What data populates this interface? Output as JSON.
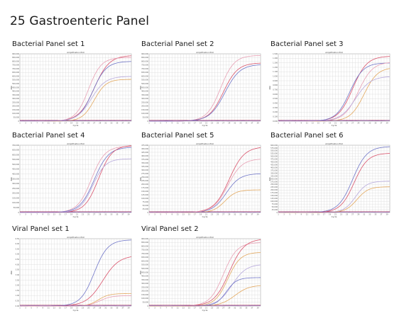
{
  "page": {
    "title": "25 Gastroenteric Panel"
  },
  "colors": {
    "red": "#d9536b",
    "rose": "#e8a0b4",
    "blue": "#7076c8",
    "lavender": "#b7a9dc",
    "orange": "#e3a85e",
    "purple": "#8a5aa8",
    "grid": "#d9d9d9",
    "baseline": "#b04a66"
  },
  "chart_data": [
    {
      "name": "Bacterial Panel set 1",
      "type": "line",
      "title": "Amplification Plot",
      "xlabel": "Cycle",
      "ylabel": "ΔRn",
      "xlim": [
        1,
        40
      ],
      "ylim": [
        0,
        900000
      ],
      "yticks": [
        0,
        50000,
        100000,
        150000,
        200000,
        250000,
        300000,
        350000,
        400000,
        450000,
        500000,
        550000,
        600000,
        650000,
        700000,
        750000,
        800000,
        850000,
        900000
      ],
      "grid": true,
      "series": [
        {
          "color": "#d9536b",
          "midpoint": 27,
          "slope": 0.38,
          "plateau": 880000
        },
        {
          "color": "#e8a0b4",
          "midpoint": 25,
          "slope": 0.45,
          "plateau": 850000
        },
        {
          "color": "#7076c8",
          "midpoint": 26.5,
          "slope": 0.42,
          "plateau": 800000
        },
        {
          "color": "#e3a85e",
          "midpoint": 27,
          "slope": 0.48,
          "plateau": 560000
        },
        {
          "color": "#b7a9dc",
          "midpoint": 26,
          "slope": 0.4,
          "plateau": 600000
        },
        {
          "color": "#8a5aa8",
          "midpoint": 0,
          "slope": 0,
          "plateau": 5000
        }
      ]
    },
    {
      "name": "Bacterial Panel set 2",
      "type": "line",
      "title": "Amplification Plot",
      "xlabel": "Cycle",
      "ylabel": "ΔRn",
      "xlim": [
        1,
        40
      ],
      "ylim": [
        0,
        900000
      ],
      "yticks": [
        0,
        50000,
        100000,
        150000,
        200000,
        250000,
        300000,
        350000,
        400000,
        450000,
        500000,
        550000,
        600000,
        650000,
        700000,
        750000,
        800000,
        850000,
        900000
      ],
      "grid": true,
      "series": [
        {
          "color": "#e8a0b4",
          "midpoint": 26,
          "slope": 0.42,
          "plateau": 880000
        },
        {
          "color": "#d9536b",
          "midpoint": 27,
          "slope": 0.4,
          "plateau": 780000
        },
        {
          "color": "#7076c8",
          "midpoint": 27.5,
          "slope": 0.38,
          "plateau": 760000
        },
        {
          "color": "#8a5aa8",
          "midpoint": 0,
          "slope": 0,
          "plateau": 4000
        }
      ]
    },
    {
      "name": "Bacterial Panel set 3",
      "type": "line",
      "title": "Amplification Plot",
      "xlabel": "Cycle",
      "ylabel": "ΔRn",
      "xlim": [
        1,
        40
      ],
      "ylim": [
        0,
        1.5
      ],
      "yticks": [
        0,
        0.1,
        0.2,
        0.3,
        0.4,
        0.5,
        0.6,
        0.7,
        0.8,
        0.9,
        1.0,
        1.1,
        1.2,
        1.3,
        1.4,
        1.5
      ],
      "grid": true,
      "series": [
        {
          "color": "#d9536b",
          "midpoint": 27,
          "slope": 0.4,
          "plateau": 1.45
        },
        {
          "color": "#7076c8",
          "midpoint": 26,
          "slope": 0.42,
          "plateau": 1.3
        },
        {
          "color": "#e8a0b4",
          "midpoint": 29,
          "slope": 0.4,
          "plateau": 1.32
        },
        {
          "color": "#e3a85e",
          "midpoint": 31,
          "slope": 0.42,
          "plateau": 1.2
        },
        {
          "color": "#b7a9dc",
          "midpoint": 28,
          "slope": 0.38,
          "plateau": 1.0
        },
        {
          "color": "#8a5aa8",
          "midpoint": 0,
          "slope": 0,
          "plateau": 0.01
        }
      ]
    },
    {
      "name": "Bacterial Panel set 4",
      "type": "line",
      "title": "Amplification Plot",
      "xlabel": "Cycle",
      "ylabel": "ΔRn",
      "xlim": [
        1,
        40
      ],
      "ylim": [
        0,
        700000
      ],
      "yticks": [
        0,
        50000,
        100000,
        150000,
        200000,
        250000,
        300000,
        350000,
        400000,
        450000,
        500000,
        550000,
        600000,
        650000,
        700000
      ],
      "grid": true,
      "series": [
        {
          "color": "#e8a0b4",
          "midpoint": 26,
          "slope": 0.42,
          "plateau": 690000
        },
        {
          "color": "#7076c8",
          "midpoint": 27,
          "slope": 0.4,
          "plateau": 680000
        },
        {
          "color": "#d9536b",
          "midpoint": 28.5,
          "slope": 0.42,
          "plateau": 700000
        },
        {
          "color": "#b7a9dc",
          "midpoint": 26.5,
          "slope": 0.45,
          "plateau": 560000
        },
        {
          "color": "#8a5aa8",
          "midpoint": 0,
          "slope": 0,
          "plateau": 3000
        }
      ]
    },
    {
      "name": "Bacterial Panel set 5",
      "type": "line",
      "title": "Amplification Plot",
      "xlabel": "Cycle",
      "ylabel": "ΔRn",
      "xlim": [
        1,
        40
      ],
      "ylim": [
        0,
        475000
      ],
      "yticks": [
        0,
        25000,
        50000,
        75000,
        100000,
        125000,
        150000,
        175000,
        200000,
        225000,
        250000,
        275000,
        300000,
        325000,
        350000,
        375000,
        400000,
        425000,
        450000,
        475000
      ],
      "grid": true,
      "series": [
        {
          "color": "#d9536b",
          "midpoint": 29,
          "slope": 0.38,
          "plateau": 465000
        },
        {
          "color": "#7076c8",
          "midpoint": 28,
          "slope": 0.42,
          "plateau": 275000
        },
        {
          "color": "#e3a85e",
          "midpoint": 27.5,
          "slope": 0.5,
          "plateau": 160000
        },
        {
          "color": "#e8a0b4",
          "midpoint": 28.5,
          "slope": 0.4,
          "plateau": 380000
        },
        {
          "color": "#8a5aa8",
          "midpoint": 0,
          "slope": 0,
          "plateau": 2000
        }
      ]
    },
    {
      "name": "Bacterial Panel set 6",
      "type": "line",
      "title": "Amplification Plot",
      "xlabel": "Cycle",
      "ylabel": "ΔRn",
      "xlim": [
        1,
        40
      ],
      "ylim": [
        0,
        600000
      ],
      "yticks": [
        0,
        25000,
        50000,
        75000,
        100000,
        125000,
        150000,
        175000,
        200000,
        225000,
        250000,
        275000,
        300000,
        325000,
        350000,
        375000,
        400000,
        425000,
        450000,
        475000,
        500000,
        525000,
        550000,
        575000,
        600000
      ],
      "grid": true,
      "series": [
        {
          "color": "#7076c8",
          "midpoint": 27,
          "slope": 0.4,
          "plateau": 590000
        },
        {
          "color": "#d9536b",
          "midpoint": 27.5,
          "slope": 0.42,
          "plateau": 530000
        },
        {
          "color": "#b7a9dc",
          "midpoint": 28,
          "slope": 0.5,
          "plateau": 280000
        },
        {
          "color": "#e3a85e",
          "midpoint": 28.5,
          "slope": 0.5,
          "plateau": 230000
        },
        {
          "color": "#8a5aa8",
          "midpoint": 0,
          "slope": 0,
          "plateau": 2000
        }
      ]
    },
    {
      "name": "Viral Panel set 1",
      "type": "line",
      "title": "Amplification Plot",
      "xlabel": "Cycle",
      "ylabel": "ΔRn",
      "xlim": [
        1,
        40
      ],
      "ylim": [
        0,
        6.5
      ],
      "yticks": [
        0,
        0.5,
        1.0,
        1.5,
        2.0,
        2.5,
        3.0,
        3.5,
        4.0,
        4.5,
        5.0,
        5.5,
        6.0,
        6.5
      ],
      "grid": true,
      "series": [
        {
          "color": "#7076c8",
          "midpoint": 27,
          "slope": 0.42,
          "plateau": 6.4
        },
        {
          "color": "#d9536b",
          "midpoint": 30,
          "slope": 0.35,
          "plateau": 4.9
        },
        {
          "color": "#e3a85e",
          "midpoint": 28.5,
          "slope": 0.55,
          "plateau": 1.2
        },
        {
          "color": "#e8a0b4",
          "midpoint": 29,
          "slope": 0.5,
          "plateau": 1.0
        },
        {
          "color": "#8a5aa8",
          "midpoint": 0,
          "slope": 0,
          "plateau": 0.02
        }
      ]
    },
    {
      "name": "Viral Panel set 2",
      "type": "line",
      "title": "Amplification Plot",
      "xlabel": "Cycle",
      "ylabel": "ΔRn",
      "xlim": [
        1,
        40
      ],
      "ylim": [
        0,
        900000
      ],
      "yticks": [
        0,
        50000,
        100000,
        150000,
        200000,
        250000,
        300000,
        350000,
        400000,
        450000,
        500000,
        550000,
        600000,
        650000,
        700000,
        750000,
        800000,
        850000,
        900000
      ],
      "grid": true,
      "series": [
        {
          "color": "#e8a0b4",
          "midpoint": 27,
          "slope": 0.42,
          "plateau": 850000
        },
        {
          "color": "#d9536b",
          "midpoint": 29,
          "slope": 0.38,
          "plateau": 900000
        },
        {
          "color": "#e3a85e",
          "midpoint": 28.5,
          "slope": 0.45,
          "plateau": 720000
        },
        {
          "color": "#b7a9dc",
          "midpoint": 30,
          "slope": 0.4,
          "plateau": 560000
        },
        {
          "color": "#7076c8",
          "midpoint": 28,
          "slope": 0.55,
          "plateau": 380000
        },
        {
          "color": "#e3a85e",
          "midpoint": 31,
          "slope": 0.4,
          "plateau": 280000
        },
        {
          "color": "#8a5aa8",
          "midpoint": 0,
          "slope": 0,
          "plateau": 3000
        }
      ]
    }
  ]
}
